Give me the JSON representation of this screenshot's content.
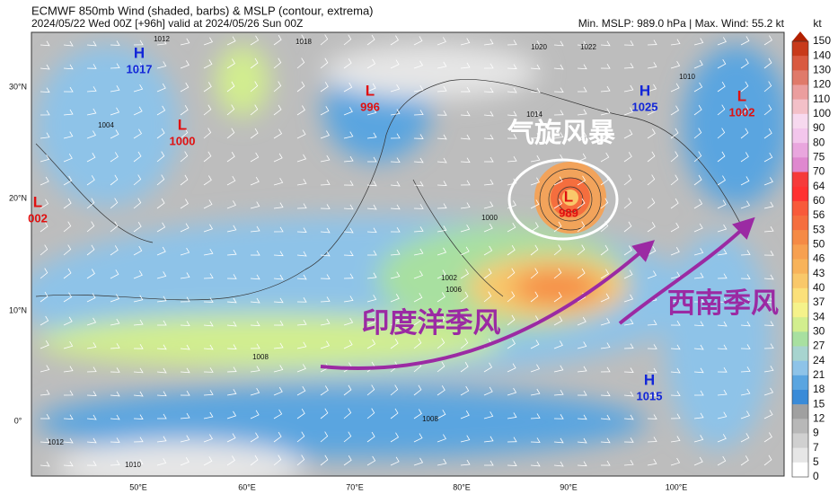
{
  "header": {
    "title": "ECMWF 850mb Wind (shaded, barbs) & MSLP (contour, extrema)",
    "subtitle": "2024/05/22 Wed 00Z [+96h] valid at 2024/05/26 Sun 00Z",
    "stats": "Min. MSLP: 989.0 hPa | Max. Wind: 55.2 kt",
    "unit": "kt"
  },
  "colorbar": {
    "labels": [
      "150",
      "140",
      "130",
      "120",
      "110",
      "100",
      "90",
      "80",
      "75",
      "70",
      "64",
      "60",
      "56",
      "53",
      "50",
      "46",
      "43",
      "40",
      "37",
      "34",
      "30",
      "27",
      "24",
      "21",
      "18",
      "15",
      "12",
      "9",
      "7",
      "5",
      "0"
    ]
  },
  "axes": {
    "lat_labels": [
      "30°N",
      "20°N",
      "10°N",
      "0°"
    ],
    "lon_labels": [
      "50°E",
      "60°E",
      "70°E",
      "80°E",
      "90°E",
      "100°E"
    ]
  },
  "systems": [
    {
      "type": "H",
      "pressure": "1017"
    },
    {
      "type": "L",
      "pressure": "996"
    },
    {
      "type": "L",
      "pressure": "1000"
    },
    {
      "type": "L",
      "pressure": "002"
    },
    {
      "type": "H",
      "pressure": "1025"
    },
    {
      "type": "L",
      "pressure": "1002"
    },
    {
      "type": "L",
      "pressure": "989"
    },
    {
      "type": "H",
      "pressure": "1015"
    }
  ],
  "annotations": [
    "气旋风暴",
    "印度洋季风",
    "西南季风"
  ],
  "contour_labels": [
    "1012",
    "1004",
    "1008",
    "1008",
    "1010",
    "1012",
    "1014",
    "1002",
    "1006",
    "1000",
    "1018",
    "1020",
    "1022",
    "1010"
  ]
}
